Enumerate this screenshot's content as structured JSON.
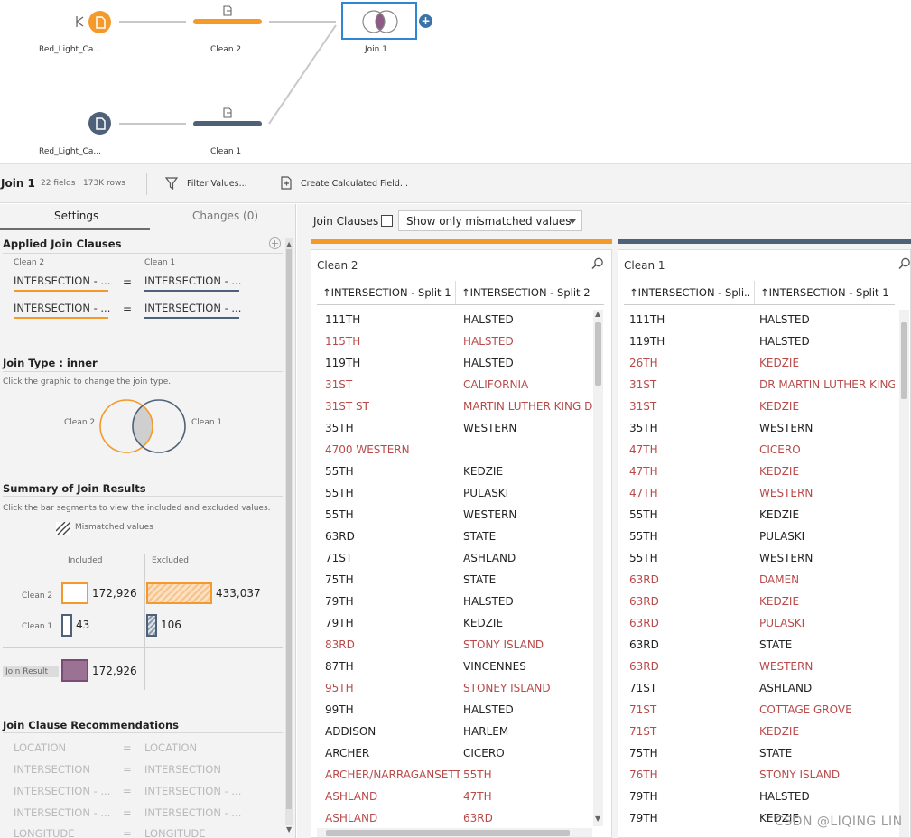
{
  "flow": {
    "nodes": {
      "input1_label": "Red_Light_Ca...",
      "input2_label": "Red_Light_Ca...",
      "clean2_label": "Clean 2",
      "clean1_label": "Clean 1",
      "join_label": "Join 1"
    },
    "colors": {
      "orange": "#f39a2a",
      "blue": "#4e6178",
      "join_border": "#2f86d1",
      "mismatch": "#b94a4a"
    }
  },
  "toolbar": {
    "title": "Join 1",
    "fields": "22 fields",
    "rows": "173K rows",
    "filter_label": "Filter Values...",
    "calc_label": "Create Calculated Field..."
  },
  "left": {
    "tabs": [
      "Settings",
      "Changes (0)"
    ],
    "applied_title": "Applied Join Clauses",
    "applied_header_left": "Clean 2",
    "applied_header_right": "Clean 1",
    "clauses": [
      {
        "left": "INTERSECTION - ...",
        "op": "=",
        "right": "INTERSECTION - ..."
      },
      {
        "left": "INTERSECTION - ...",
        "op": "=",
        "right": "INTERSECTION - ..."
      }
    ],
    "join_type_title": "Join Type : inner",
    "join_type_hint": "Click the graphic to change the join type.",
    "venn_left": "Clean 2",
    "venn_right": "Clean 1",
    "summary_title": "Summary of Join Results",
    "summary_hint": "Click the bar segments to view the included and excluded values.",
    "mismatched_label": "Mismatched values",
    "col_included": "Included",
    "col_excluded": "Excluded",
    "row_clean2": "Clean 2",
    "row_clean1": "Clean 1",
    "row_result": "Join Result",
    "clean2_included": "172,926",
    "clean2_excluded": "433,037",
    "clean1_included": "43",
    "clean1_excluded": "106",
    "result_included": "172,926",
    "rec_title": "Join Clause Recommendations",
    "recommendations": [
      {
        "left": "LOCATION",
        "op": "=",
        "right": "LOCATION"
      },
      {
        "left": "INTERSECTION",
        "op": "=",
        "right": "INTERSECTION"
      },
      {
        "left": "INTERSECTION - ...",
        "op": "=",
        "right": "INTERSECTION - ..."
      },
      {
        "left": "INTERSECTION - ...",
        "op": "=",
        "right": "INTERSECTION - ..."
      },
      {
        "left": "LONGITUDE",
        "op": "=",
        "right": "LONGITUDE"
      }
    ]
  },
  "right": {
    "join_clauses_label": "Join Clauses",
    "dropdown_value": "Show only mismatched values",
    "left_panel": {
      "title": "Clean 2",
      "col1": "↑INTERSECTION - Split 1",
      "col2": "↑INTERSECTION - Split 2",
      "rows": [
        [
          "111TH",
          "HALSTED",
          false
        ],
        [
          "115TH",
          "HALSTED",
          true
        ],
        [
          "119TH",
          "HALSTED",
          false
        ],
        [
          "31ST",
          "CALIFORNIA",
          true
        ],
        [
          "31ST ST",
          "MARTIN LUTHER KING DR",
          true
        ],
        [
          "35TH",
          "WESTERN",
          false
        ],
        [
          "4700 WESTERN",
          "",
          true
        ],
        [
          "55TH",
          "KEDZIE",
          false
        ],
        [
          "55TH",
          "PULASKI",
          false
        ],
        [
          "55TH",
          "WESTERN",
          false
        ],
        [
          "63RD",
          "STATE",
          false
        ],
        [
          "71ST",
          "ASHLAND",
          false
        ],
        [
          "75TH",
          "STATE",
          false
        ],
        [
          "79TH",
          "HALSTED",
          false
        ],
        [
          "79TH",
          "KEDZIE",
          false
        ],
        [
          "83RD",
          "STONY ISLAND",
          true
        ],
        [
          "87TH",
          "VINCENNES",
          false
        ],
        [
          "95TH",
          "STONEY ISLAND",
          true
        ],
        [
          "99TH",
          "HALSTED",
          false
        ],
        [
          "ADDISON",
          "HARLEM",
          false
        ],
        [
          "ARCHER",
          "CICERO",
          false
        ],
        [
          "ARCHER/NARRAGANSETT",
          "55TH",
          true
        ],
        [
          "ASHLAND",
          "47TH",
          true
        ],
        [
          "ASHLAND",
          "63RD",
          true
        ]
      ]
    },
    "right_panel": {
      "title": "Clean 1",
      "col1": "↑INTERSECTION - Spli...",
      "col2": "↑INTERSECTION - Split 1",
      "rows": [
        [
          "111TH",
          "HALSTED",
          false
        ],
        [
          "119TH",
          "HALSTED",
          false
        ],
        [
          "26TH",
          "KEDZIE",
          true
        ],
        [
          "31ST",
          "DR MARTIN LUTHER KING",
          true
        ],
        [
          "31ST",
          "KEDZIE",
          true
        ],
        [
          "35TH",
          "WESTERN",
          false
        ],
        [
          "47TH",
          "CICERO",
          true
        ],
        [
          "47TH",
          "KEDZIE",
          true
        ],
        [
          "47TH",
          "WESTERN",
          true
        ],
        [
          "55TH",
          "KEDZIE",
          false
        ],
        [
          "55TH",
          "PULASKI",
          false
        ],
        [
          "55TH",
          "WESTERN",
          false
        ],
        [
          "63RD",
          "DAMEN",
          true
        ],
        [
          "63RD",
          "KEDZIE",
          true
        ],
        [
          "63RD",
          "PULASKI",
          true
        ],
        [
          "63RD",
          "STATE",
          false
        ],
        [
          "63RD",
          "WESTERN",
          true
        ],
        [
          "71ST",
          "ASHLAND",
          false
        ],
        [
          "71ST",
          "COTTAGE GROVE",
          true
        ],
        [
          "71ST",
          "KEDZIE",
          true
        ],
        [
          "75TH",
          "STATE",
          false
        ],
        [
          "76TH",
          "STONY ISLAND",
          true
        ],
        [
          "79TH",
          "HALSTED",
          false
        ],
        [
          "79TH",
          "KEDZIE",
          false
        ]
      ]
    }
  },
  "watermark": "CSDN @LIQING LIN"
}
